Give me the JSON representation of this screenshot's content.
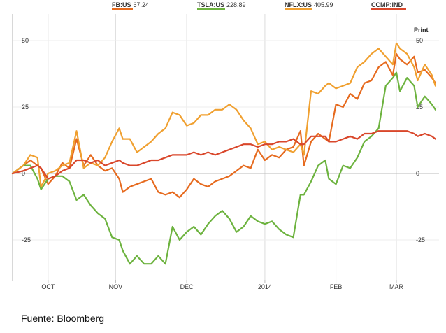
{
  "legend": [
    {
      "symbol": "FB:US",
      "value": "67.24",
      "color": "#e66a1e"
    },
    {
      "symbol": "TSLA:US",
      "value": "228.89",
      "color": "#6db33f"
    },
    {
      "symbol": "NFLX:US",
      "value": "405.99",
      "color": "#f0a030"
    },
    {
      "symbol": "CCMP:IND",
      "value": "",
      "color": "#d9472b"
    }
  ],
  "print_label": "Print",
  "caption": "Fuente: Bloomberg",
  "chart_data": {
    "type": "line",
    "x_tick_labels": [
      "OCT",
      "NOV",
      "DEC",
      "2014",
      "FEB",
      "MAR"
    ],
    "y_tick_labels": [
      "50",
      "25",
      "0",
      "-25"
    ],
    "y_ticks": [
      50,
      25,
      0,
      -25
    ],
    "ylim": [
      -40,
      60
    ],
    "xlim": [
      0,
      120
    ],
    "grid": true,
    "series": [
      {
        "name": "FB:US",
        "color": "#e66a1e",
        "x": [
          0,
          3,
          5,
          7,
          8,
          10,
          12,
          14,
          16,
          18,
          20,
          22,
          24,
          26,
          28,
          30,
          31,
          33,
          35,
          37,
          39,
          41,
          43,
          45,
          47,
          49,
          51,
          53,
          55,
          57,
          59,
          61,
          63,
          65,
          67,
          69,
          71,
          73,
          75,
          77,
          79,
          81,
          82,
          84,
          86,
          88,
          89,
          91,
          93,
          95,
          97,
          99,
          101,
          103,
          105,
          107,
          108,
          109,
          111,
          113,
          114,
          116,
          118,
          119
        ],
        "y": [
          0,
          3,
          5,
          3,
          2,
          -4,
          -1,
          4,
          2,
          13,
          3,
          7,
          3,
          1,
          2,
          -2,
          -7,
          -5,
          -4,
          -3,
          -2,
          -7,
          -8,
          -7,
          -9,
          -6,
          -2,
          -4,
          -5,
          -3,
          -2,
          -1,
          1,
          3,
          2,
          9,
          5,
          7,
          6,
          9,
          10,
          16,
          3,
          12,
          15,
          13,
          12,
          26,
          25,
          30,
          28,
          34,
          35,
          40,
          42,
          37,
          45,
          43,
          41,
          44,
          38,
          39,
          36,
          34
        ]
      },
      {
        "name": "TSLA:US",
        "color": "#6db33f",
        "x": [
          0,
          3,
          5,
          7,
          8,
          10,
          12,
          14,
          16,
          18,
          20,
          22,
          24,
          26,
          28,
          30,
          31,
          33,
          35,
          37,
          39,
          41,
          43,
          45,
          47,
          49,
          51,
          53,
          55,
          57,
          59,
          61,
          63,
          65,
          67,
          69,
          71,
          73,
          75,
          77,
          79,
          81,
          82,
          84,
          86,
          88,
          89,
          91,
          93,
          95,
          97,
          99,
          101,
          103,
          105,
          107,
          108,
          109,
          111,
          113,
          114,
          116,
          118,
          119
        ],
        "y": [
          0,
          3,
          3,
          -2,
          -6,
          -2,
          -1,
          -1,
          -3,
          -10,
          -8,
          -12,
          -15,
          -17,
          -24,
          -25,
          -29,
          -34,
          -31,
          -34,
          -34,
          -31,
          -34,
          -20,
          -25,
          -22,
          -20,
          -23,
          -19,
          -16,
          -14,
          -17,
          -22,
          -20,
          -16,
          -18,
          -19,
          -18,
          -21,
          -23,
          -24,
          -8,
          -8,
          -3,
          3,
          5,
          -2,
          -4,
          3,
          2,
          6,
          12,
          14,
          17,
          33,
          36,
          38,
          31,
          36,
          33,
          25,
          29,
          26,
          24
        ]
      },
      {
        "name": "NFLX:US",
        "color": "#f0a030",
        "x": [
          0,
          3,
          5,
          7,
          8,
          10,
          12,
          14,
          16,
          18,
          20,
          22,
          24,
          26,
          28,
          30,
          31,
          33,
          35,
          37,
          39,
          41,
          43,
          45,
          47,
          49,
          51,
          53,
          55,
          57,
          59,
          61,
          63,
          65,
          67,
          69,
          71,
          73,
          75,
          77,
          79,
          81,
          82,
          84,
          86,
          88,
          89,
          91,
          93,
          95,
          97,
          99,
          101,
          103,
          105,
          107,
          108,
          109,
          111,
          113,
          114,
          116,
          118,
          119
        ],
        "y": [
          0,
          3,
          7,
          6,
          -5,
          0,
          1,
          3,
          4,
          16,
          2,
          4,
          3,
          6,
          12,
          17,
          13,
          13,
          8,
          10,
          12,
          15,
          17,
          23,
          22,
          18,
          19,
          22,
          22,
          24,
          24,
          26,
          24,
          20,
          17,
          11,
          12,
          9,
          10,
          9,
          8,
          11,
          7,
          31,
          30,
          33,
          34,
          32,
          33,
          34,
          40,
          42,
          45,
          47,
          44,
          41,
          49,
          47,
          45,
          40,
          35,
          41,
          37,
          33
        ]
      },
      {
        "name": "CCMP:IND",
        "color": "#d9472b",
        "x": [
          0,
          3,
          5,
          7,
          8,
          10,
          12,
          14,
          16,
          18,
          20,
          22,
          24,
          26,
          28,
          30,
          31,
          33,
          35,
          37,
          39,
          41,
          43,
          45,
          47,
          49,
          51,
          53,
          55,
          57,
          59,
          61,
          63,
          65,
          67,
          69,
          71,
          73,
          75,
          77,
          79,
          81,
          82,
          84,
          86,
          88,
          89,
          91,
          93,
          95,
          97,
          99,
          101,
          103,
          105,
          107,
          108,
          109,
          111,
          113,
          114,
          116,
          118,
          119
        ],
        "y": [
          0,
          1,
          2,
          3,
          2,
          -2,
          -1,
          1,
          2,
          5,
          5,
          4,
          5,
          3,
          4,
          5,
          4,
          3,
          3,
          4,
          5,
          5,
          6,
          7,
          7,
          7,
          8,
          7,
          8,
          7,
          8,
          9,
          10,
          11,
          11,
          10,
          11,
          11,
          12,
          12,
          13,
          11,
          11,
          14,
          14,
          14,
          12,
          12,
          13,
          14,
          13,
          15,
          15,
          16,
          16,
          16,
          16,
          16,
          16,
          15,
          14,
          15,
          14,
          13
        ]
      }
    ]
  }
}
